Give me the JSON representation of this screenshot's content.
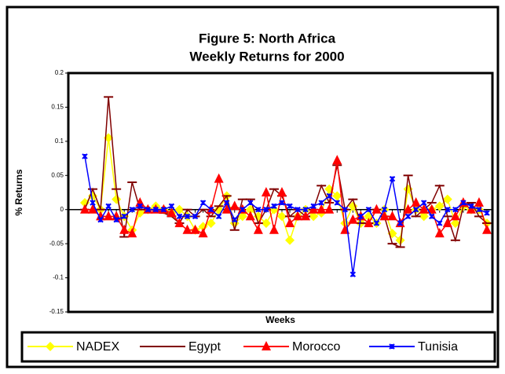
{
  "chart_data": {
    "type": "line",
    "title": [
      "Figure 5: North Africa",
      "Weekly Returns for 2000"
    ],
    "x_label": "Weeks",
    "y_label": "% Returns",
    "ylim": [
      -0.15,
      0.2
    ],
    "yticks": [
      -0.15,
      -0.1,
      -0.05,
      0,
      0.05,
      0.1,
      0.15,
      0.2
    ],
    "legend": "bottom",
    "series": [
      {
        "name": "NADEX",
        "color": "#ffff00",
        "marker": "diamond",
        "values": [
          0.01,
          0.02,
          0.0,
          0.105,
          0.015,
          -0.01,
          -0.03,
          -0.005,
          0.0,
          0.005,
          0.0,
          -0.005,
          0.0,
          -0.01,
          -0.03,
          -0.025,
          -0.02,
          0.0,
          0.02,
          -0.02,
          -0.01,
          0.0,
          -0.01,
          -0.02,
          0.0,
          -0.01,
          -0.045,
          -0.01,
          0.0,
          -0.01,
          -0.005,
          0.03,
          0.02,
          -0.02,
          0.005,
          -0.02,
          -0.01,
          -0.02,
          0.0,
          -0.035,
          -0.045,
          0.03,
          0.0,
          -0.01,
          0.0,
          0.005,
          0.015,
          -0.02,
          0.005,
          0.0,
          0.0,
          -0.02
        ]
      },
      {
        "name": "Egypt",
        "color": "#800000",
        "marker": "dash",
        "values": [
          0.0,
          0.03,
          0.0,
          0.165,
          0.03,
          -0.04,
          0.04,
          0.0,
          0.0,
          0.0,
          -0.005,
          -0.01,
          -0.02,
          0.0,
          -0.01,
          0.0,
          -0.01,
          0.005,
          0.02,
          -0.03,
          0.015,
          0.015,
          -0.02,
          0.0,
          0.03,
          0.02,
          -0.01,
          0.0,
          -0.01,
          0.0,
          0.035,
          0.01,
          0.065,
          0.0,
          0.015,
          -0.02,
          -0.02,
          0.0,
          -0.01,
          -0.05,
          -0.055,
          0.05,
          -0.01,
          0.0,
          0.01,
          0.035,
          -0.01,
          -0.045,
          0.005,
          0.01,
          -0.01,
          -0.02
        ]
      },
      {
        "name": "Morocco",
        "color": "#ff0000",
        "marker": "triangle",
        "values": [
          0.0,
          0.0,
          -0.01,
          -0.01,
          -0.01,
          -0.03,
          -0.035,
          0.01,
          0.0,
          0.0,
          0.0,
          -0.005,
          -0.02,
          -0.03,
          -0.03,
          -0.035,
          0.0,
          0.045,
          0.0,
          0.005,
          0.0,
          -0.01,
          -0.03,
          0.025,
          -0.03,
          0.025,
          -0.02,
          -0.01,
          -0.01,
          0.0,
          0.0,
          0.0,
          0.072,
          -0.03,
          -0.015,
          -0.01,
          -0.02,
          0.0,
          -0.01,
          -0.01,
          -0.02,
          0.0,
          0.01,
          0.0,
          0.0,
          -0.035,
          -0.02,
          -0.01,
          0.01,
          0.0,
          0.01,
          -0.03
        ]
      },
      {
        "name": "Tunisia",
        "color": "#0000ff",
        "marker": "star",
        "values": [
          0.078,
          0.01,
          -0.015,
          0.005,
          -0.015,
          -0.01,
          0.0,
          0.005,
          0.0,
          0.0,
          0.0,
          0.005,
          -0.01,
          -0.01,
          -0.01,
          0.01,
          0.0,
          -0.01,
          0.01,
          -0.015,
          0.0,
          0.01,
          0.0,
          0.0,
          0.005,
          0.01,
          0.005,
          0.0,
          0.0,
          0.005,
          0.01,
          0.02,
          0.01,
          0.0,
          -0.095,
          -0.01,
          0.0,
          -0.02,
          0.0,
          0.045,
          -0.02,
          -0.01,
          0.0,
          0.01,
          -0.01,
          -0.02,
          0.0,
          0.0,
          0.01,
          0.005,
          0.0,
          -0.005
        ]
      }
    ]
  }
}
